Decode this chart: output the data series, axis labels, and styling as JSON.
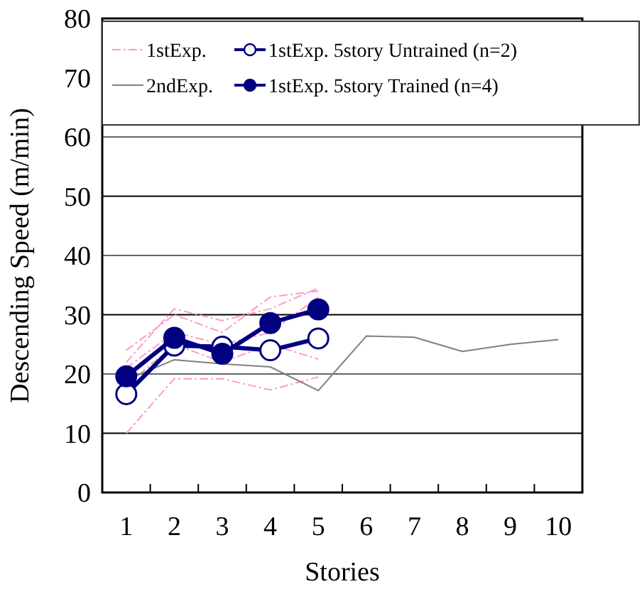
{
  "chart_data": {
    "type": "line",
    "xlabel": "Stories",
    "ylabel": "Descending Speed (m/min)",
    "categories": [
      "1",
      "2",
      "3",
      "4",
      "5",
      "6",
      "7",
      "8",
      "9",
      "10"
    ],
    "ylim": [
      0,
      80
    ],
    "yticks": [
      0,
      10,
      20,
      30,
      40,
      50,
      60,
      70,
      80
    ],
    "grid": "y",
    "legend": "top",
    "series": [
      {
        "name": "1stExp.",
        "color": "#ff99cc",
        "line_style": "dashed",
        "marker": "none",
        "values": [
          10,
          19.2,
          19.2,
          17.3,
          19.5,
          null,
          null,
          null,
          null,
          null
        ]
      },
      {
        "color": "#ff99cc",
        "line_style": "dashed",
        "marker": "none",
        "values": [
          22,
          31,
          29,
          31,
          34.5,
          null,
          null,
          null,
          null,
          null
        ]
      },
      {
        "color": "#ff99cc",
        "line_style": "dashed",
        "marker": "none",
        "values": [
          24,
          30,
          27,
          33,
          34,
          null,
          null,
          null,
          null,
          null
        ]
      },
      {
        "color": "#ff99cc",
        "line_style": "dashed",
        "marker": "none",
        "values": [
          21,
          27,
          25,
          27,
          33,
          null,
          null,
          null,
          null,
          null
        ]
      },
      {
        "color": "#ff99cc",
        "line_style": "dashed",
        "marker": "none",
        "values": [
          18,
          25,
          22,
          25,
          22.5,
          null,
          null,
          null,
          null,
          null
        ]
      },
      {
        "name": "2ndExp.",
        "color": "#808080",
        "line_style": "solid",
        "marker": "none",
        "values": [
          19,
          22.4,
          21.7,
          21.2,
          17.2,
          26.4,
          26.2,
          23.8,
          25,
          25.8
        ]
      },
      {
        "name": "1stExp. 5story Untrained (n=2)",
        "color": "#000080",
        "line_style": "solid",
        "marker": "circle",
        "colors": [
          "#ffffff",
          "#ffffff",
          "#ffffff",
          "#ffffff",
          "#ffffff",
          null,
          null,
          null,
          null,
          null
        ],
        "values": [
          16.6,
          24.8,
          24.6,
          24,
          26,
          null,
          null,
          null,
          null,
          null
        ]
      },
      {
        "name": "1stExp. 5story Trained (n=4)",
        "color": "#000080",
        "line_style": "solid",
        "marker": "circle",
        "values": [
          19.6,
          26.1,
          23.4,
          28.6,
          30.9,
          null,
          null,
          null,
          null,
          null
        ]
      }
    ]
  }
}
